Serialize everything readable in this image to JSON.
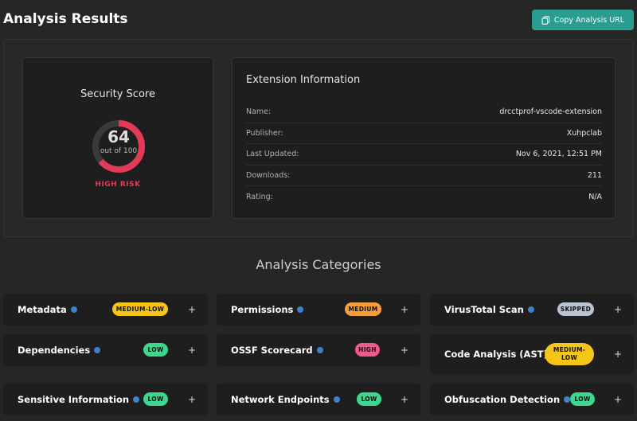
{
  "header": {
    "title": "Analysis Results",
    "copy_button": "Copy Analysis URL"
  },
  "score": {
    "title": "Security Score",
    "value": "64",
    "subtitle": "out of 100",
    "fraction": 0.64,
    "risk": "HIGH RISK",
    "risk_color": "#e23b57"
  },
  "extension": {
    "title": "Extension Information",
    "rows": [
      {
        "key": "Name:",
        "value": "drcctprof-vscode-extension"
      },
      {
        "key": "Publisher:",
        "value": "Xuhpclab"
      },
      {
        "key": "Last Updated:",
        "value": "Nov 6, 2021, 12:51 PM"
      },
      {
        "key": "Downloads:",
        "value": "211"
      },
      {
        "key": "Rating:",
        "value": "N/A"
      }
    ]
  },
  "categories": {
    "title": "Analysis Categories",
    "items": [
      {
        "name": "Metadata",
        "badge": "MEDIUM-LOW"
      },
      {
        "name": "Permissions",
        "badge": "MEDIUM"
      },
      {
        "name": "VirusTotal Scan",
        "badge": "SKIPPED"
      },
      {
        "name": "Dependencies",
        "badge": "LOW"
      },
      {
        "name": "OSSF Scorecard",
        "badge": "HIGH"
      },
      {
        "name": "Code Analysis (AST)",
        "badge": "MEDIUM-\nLOW"
      },
      {
        "name": "Sensitive Information",
        "badge": "LOW"
      },
      {
        "name": "Network Endpoints",
        "badge": "LOW"
      },
      {
        "name": "Obfuscation Detection",
        "badge": "LOW"
      }
    ],
    "expand_symbol": "+"
  },
  "colors": {
    "accent": "#2a9d8f",
    "medium_low": "#f5c518",
    "medium": "#f59e3b",
    "high": "#ee5a8a",
    "low": "#3dd68c",
    "skipped": "#b8c3d3"
  }
}
